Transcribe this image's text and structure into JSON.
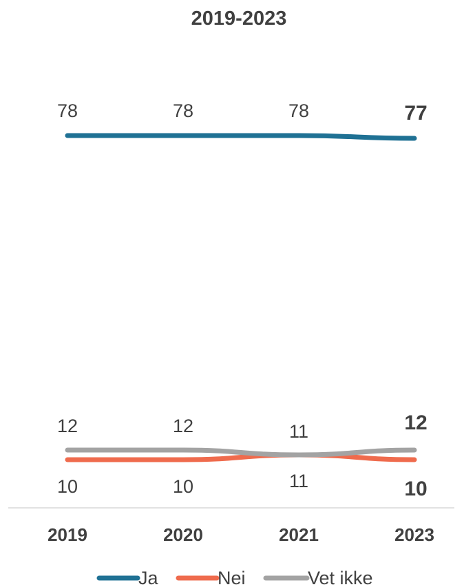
{
  "chart_data": {
    "type": "line",
    "title": "2019-2023",
    "categories": [
      "2019",
      "2020",
      "2021",
      "2023"
    ],
    "series": [
      {
        "name": "Ja",
        "color": "#1f7194",
        "values": [
          78,
          78,
          78,
          77
        ]
      },
      {
        "name": "Nei",
        "color": "#ef6b4d",
        "values": [
          10,
          10,
          11,
          10
        ]
      },
      {
        "name": "Vet ikke",
        "color": "#a3a3a3",
        "values": [
          12,
          12,
          11,
          12
        ]
      }
    ],
    "grid": false,
    "legend": "bottom",
    "xlabel": "",
    "ylabel": ""
  }
}
